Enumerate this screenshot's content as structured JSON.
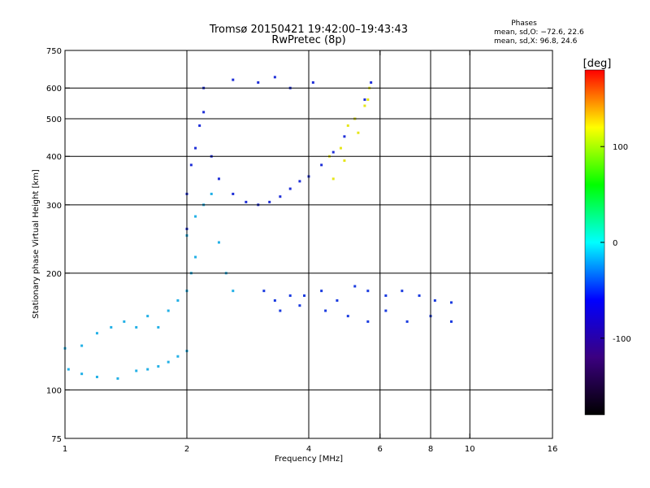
{
  "chart_data": {
    "type": "scatter",
    "title": "Tromsø 20150421 19:42:00–19:43:43",
    "subtitle": "RwPretec (8p)",
    "stats": {
      "heading": "Phases",
      "line1": "mean, sd,O: −72.6, 22.6",
      "line2": "mean, sd,X:  96.8, 24.6"
    },
    "xlabel": "Frequency [MHz]",
    "ylabel": "Stationary phase Virtual Height [km]",
    "x_scale": "log",
    "y_scale": "log",
    "xlim": [
      1,
      16
    ],
    "ylim": [
      75,
      750
    ],
    "x_ticks": [
      1,
      2,
      4,
      6,
      8,
      10,
      16
    ],
    "x_tick_labels": [
      "1",
      "2",
      "4",
      "6",
      "8",
      "10",
      "16"
    ],
    "x_gridlines": [
      2,
      4,
      6,
      8,
      10
    ],
    "y_ticks": [
      75,
      100,
      200,
      300,
      400,
      500,
      600,
      750
    ],
    "y_tick_labels": [
      "75",
      "100",
      "200",
      "300",
      "400",
      "500",
      "600",
      "750"
    ],
    "y_gridlines": [
      100,
      200,
      300,
      400,
      500,
      600
    ],
    "grid": true,
    "colorbar": {
      "label": "[deg]",
      "range": [
        -180,
        180
      ],
      "ticks": [
        100,
        0,
        -100
      ],
      "tick_labels": [
        "100",
        "0",
        "-100"
      ]
    },
    "colors": [
      "#000000",
      "#3b0080",
      "#0000ff",
      "#00ffff",
      "#00ff00",
      "#ffff00",
      "#ff0000"
    ],
    "series": [
      {
        "values": [
          [
            1.02,
            113
          ],
          [
            1.1,
            110
          ],
          [
            1.2,
            108
          ],
          [
            1.35,
            107
          ],
          [
            1.5,
            112
          ],
          [
            1.6,
            113
          ],
          [
            1.7,
            115
          ],
          [
            1.8,
            118
          ],
          [
            1.9,
            122
          ],
          [
            2.0,
            126
          ],
          [
            1.0,
            128
          ],
          [
            1.1,
            130
          ],
          [
            1.2,
            140
          ],
          [
            1.3,
            145
          ],
          [
            1.4,
            150
          ],
          [
            1.5,
            145
          ],
          [
            1.6,
            155
          ],
          [
            1.7,
            145
          ],
          [
            1.8,
            160
          ],
          [
            1.9,
            170
          ],
          [
            2.0,
            180
          ],
          [
            2.05,
            200
          ],
          [
            2.1,
            220
          ],
          [
            2.0,
            250
          ],
          [
            2.1,
            280
          ],
          [
            2.2,
            300
          ],
          [
            2.3,
            320
          ],
          [
            2.4,
            240
          ],
          [
            2.5,
            200
          ],
          [
            2.6,
            180
          ]
        ]
      },
      {
        "values": [
          [
            2.0,
            260
          ],
          [
            2.0,
            320
          ],
          [
            2.05,
            380
          ],
          [
            2.1,
            420
          ],
          [
            2.15,
            480
          ],
          [
            2.2,
            520
          ],
          [
            2.3,
            400
          ],
          [
            2.4,
            350
          ],
          [
            2.6,
            320
          ],
          [
            2.8,
            305
          ],
          [
            3.0,
            300
          ],
          [
            3.2,
            305
          ],
          [
            3.4,
            315
          ],
          [
            3.6,
            330
          ],
          [
            3.8,
            345
          ],
          [
            4.0,
            355
          ],
          [
            4.3,
            380
          ],
          [
            4.6,
            410
          ],
          [
            4.9,
            450
          ],
          [
            5.2,
            500
          ],
          [
            5.5,
            560
          ],
          [
            5.7,
            620
          ],
          [
            2.2,
            600
          ],
          [
            2.6,
            630
          ],
          [
            3.0,
            620
          ],
          [
            3.3,
            640
          ],
          [
            3.6,
            600
          ],
          [
            4.1,
            620
          ]
        ]
      },
      {
        "values": [
          [
            3.1,
            180
          ],
          [
            3.3,
            170
          ],
          [
            3.6,
            175
          ],
          [
            3.9,
            175
          ],
          [
            4.3,
            180
          ],
          [
            4.7,
            170
          ],
          [
            5.2,
            185
          ],
          [
            5.6,
            180
          ],
          [
            6.2,
            175
          ],
          [
            6.8,
            180
          ],
          [
            7.5,
            175
          ],
          [
            8.2,
            170
          ],
          [
            9.0,
            168
          ],
          [
            3.4,
            160
          ],
          [
            3.8,
            165
          ],
          [
            4.4,
            160
          ],
          [
            5.0,
            155
          ],
          [
            5.6,
            150
          ],
          [
            6.2,
            160
          ],
          [
            7.0,
            150
          ],
          [
            8.0,
            155
          ],
          [
            9.0,
            150
          ]
        ]
      },
      {
        "values": [
          [
            4.5,
            400
          ],
          [
            4.8,
            420
          ],
          [
            5.0,
            480
          ],
          [
            5.2,
            500
          ],
          [
            5.5,
            540
          ],
          [
            5.65,
            600
          ],
          [
            5.6,
            560
          ],
          [
            5.3,
            460
          ],
          [
            4.9,
            390
          ],
          [
            4.6,
            350
          ]
        ]
      }
    ]
  }
}
